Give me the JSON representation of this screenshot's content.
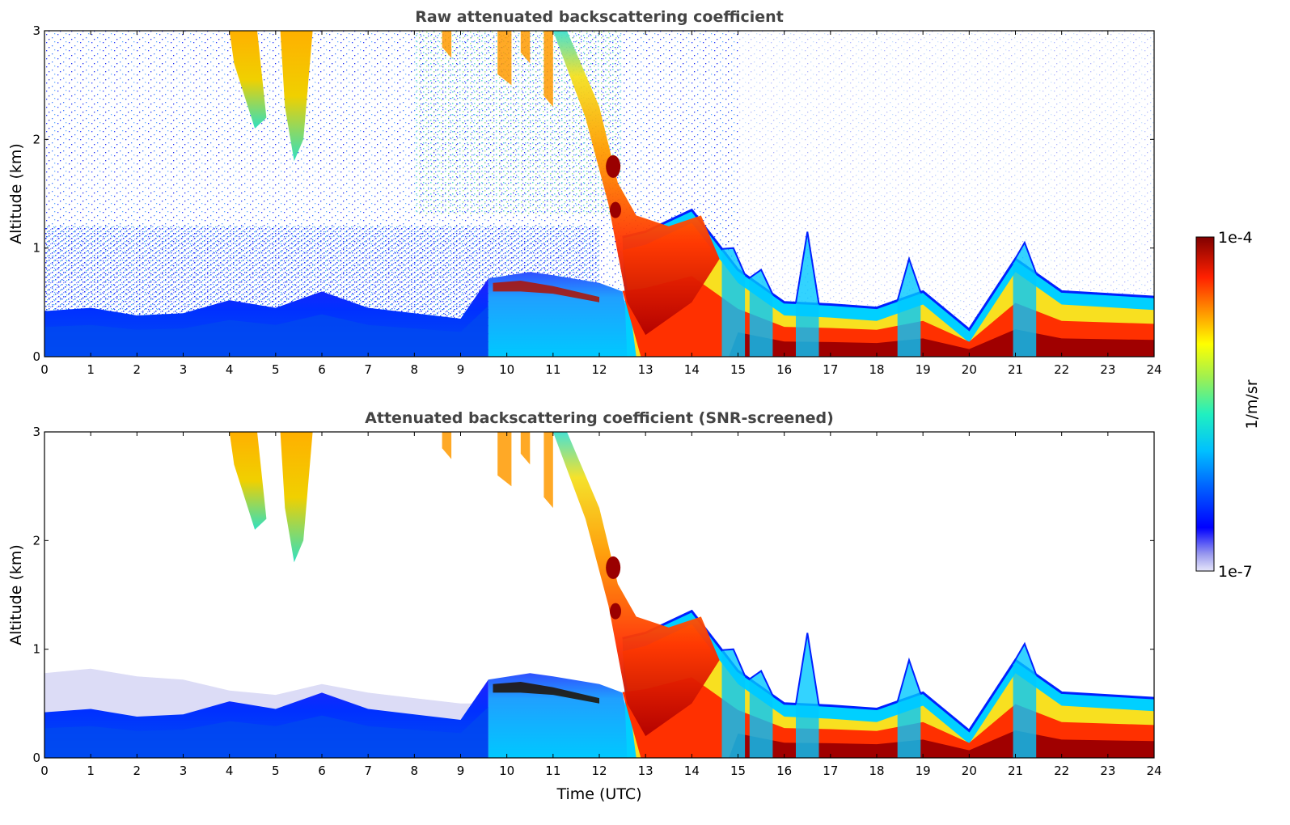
{
  "chart_data": [
    {
      "type": "heatmap",
      "title": "Raw attenuated backscattering coefficient",
      "xlabel": "",
      "ylabel": "Altitude (km)",
      "xlim": [
        0,
        24
      ],
      "ylim": [
        0,
        3
      ],
      "x_ticks": [
        "0",
        "1",
        "2",
        "3",
        "4",
        "5",
        "6",
        "7",
        "8",
        "9",
        "10",
        "11",
        "12",
        "13",
        "14",
        "15",
        "16",
        "17",
        "18",
        "19",
        "20",
        "21",
        "22",
        "23",
        "24"
      ],
      "y_ticks": [
        "0",
        "1",
        "2",
        "3"
      ],
      "screened": false,
      "boundary_layer_top_km": [
        [
          0,
          0.42
        ],
        [
          1,
          0.45
        ],
        [
          2,
          0.38
        ],
        [
          3,
          0.4
        ],
        [
          4,
          0.52
        ],
        [
          5,
          0.45
        ],
        [
          6,
          0.6
        ],
        [
          7,
          0.45
        ],
        [
          8,
          0.4
        ],
        [
          9,
          0.35
        ],
        [
          9.6,
          0.72
        ],
        [
          11,
          0.75
        ],
        [
          12,
          0.68
        ],
        [
          12.5,
          1.1
        ],
        [
          13,
          1.15
        ],
        [
          14,
          1.35
        ],
        [
          15,
          0.8
        ],
        [
          16,
          0.5
        ],
        [
          17,
          0.48
        ],
        [
          18,
          0.45
        ],
        [
          19,
          0.6
        ],
        [
          20,
          0.25
        ],
        [
          21,
          0.9
        ],
        [
          22,
          0.6
        ],
        [
          24,
          0.55
        ]
      ]
    },
    {
      "type": "heatmap",
      "title": "Attenuated backscattering coefficient (SNR-screened)",
      "xlabel": "Time (UTC)",
      "ylabel": "Altitude (km)",
      "xlim": [
        0,
        24
      ],
      "ylim": [
        0,
        3
      ],
      "x_ticks": [
        "0",
        "1",
        "2",
        "3",
        "4",
        "5",
        "6",
        "7",
        "8",
        "9",
        "10",
        "11",
        "12",
        "13",
        "14",
        "15",
        "16",
        "17",
        "18",
        "19",
        "20",
        "21",
        "22",
        "23",
        "24"
      ],
      "y_ticks": [
        "0",
        "1",
        "2",
        "3"
      ],
      "screened": true,
      "boundary_layer_top_km": [
        [
          0,
          0.42
        ],
        [
          1,
          0.45
        ],
        [
          2,
          0.38
        ],
        [
          3,
          0.4
        ],
        [
          4,
          0.52
        ],
        [
          5,
          0.45
        ],
        [
          6,
          0.6
        ],
        [
          7,
          0.45
        ],
        [
          8,
          0.4
        ],
        [
          9,
          0.35
        ],
        [
          9.6,
          0.72
        ],
        [
          11,
          0.75
        ],
        [
          12,
          0.68
        ],
        [
          12.5,
          1.1
        ],
        [
          13,
          1.15
        ],
        [
          14,
          1.35
        ],
        [
          15,
          0.8
        ],
        [
          16,
          0.5
        ],
        [
          17,
          0.48
        ],
        [
          18,
          0.45
        ],
        [
          19,
          0.6
        ],
        [
          20,
          0.25
        ],
        [
          21,
          0.9
        ],
        [
          22,
          0.6
        ],
        [
          24,
          0.55
        ]
      ]
    }
  ],
  "colorbar": {
    "label": "1/m/sr",
    "max_label": "1e-4",
    "min_label": "1e-7",
    "scale": "log",
    "colormap": "jet"
  },
  "colors": {
    "axis": "#000000",
    "title": "#444444",
    "background": "#ffffff"
  }
}
